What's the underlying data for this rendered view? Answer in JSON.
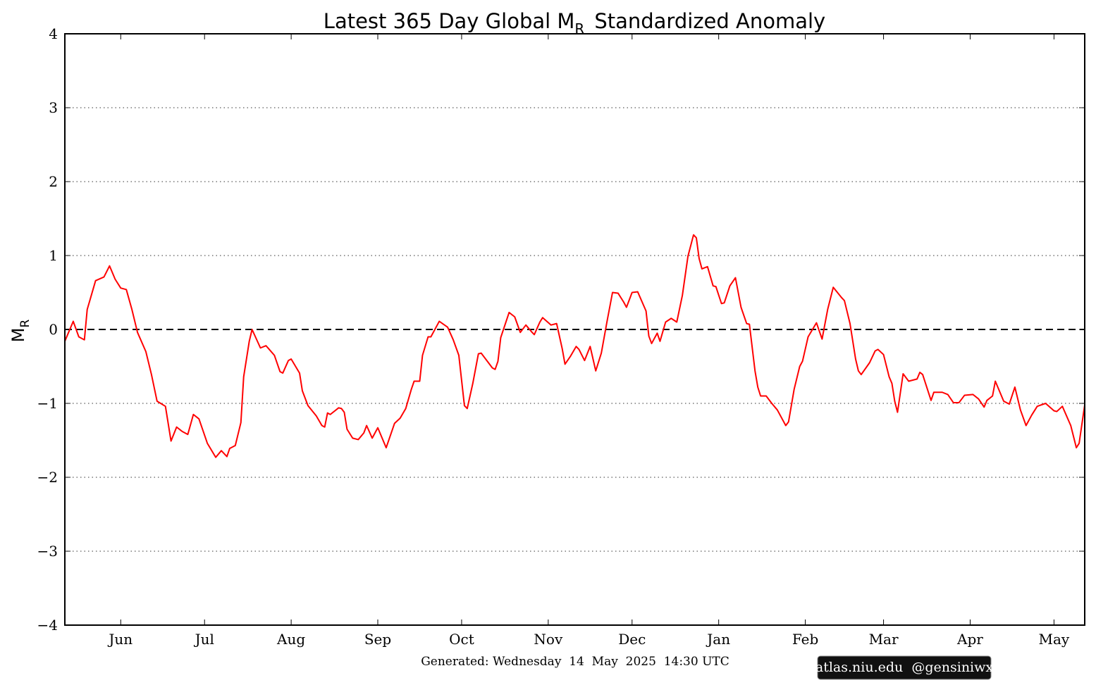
{
  "chart_data": {
    "type": "line",
    "title": "Latest 365 Day Global M",
    "title_sub": "R",
    "title_end": "Standardized Anomaly",
    "ylabel": "M",
    "ylabel_sub": "R",
    "footer": "Generated: Wednesday  14  May  2025  14:30 UTC",
    "credit": "atlas.niu.edu  @gensiniwx",
    "color": "#ff0000",
    "grid": true,
    "zero_line": true,
    "xlim": [
      0,
      365
    ],
    "xticks": [
      {
        "value": 20,
        "label": "Jun"
      },
      {
        "value": 50,
        "label": "Jul"
      },
      {
        "value": 81,
        "label": "Aug"
      },
      {
        "value": 112,
        "label": "Sep"
      },
      {
        "value": 142,
        "label": "Oct"
      },
      {
        "value": 173,
        "label": "Nov"
      },
      {
        "value": 203,
        "label": "Dec"
      },
      {
        "value": 234,
        "label": "Jan"
      },
      {
        "value": 265,
        "label": "Feb"
      },
      {
        "value": 293,
        "label": "Mar"
      },
      {
        "value": 324,
        "label": "Apr"
      },
      {
        "value": 354,
        "label": "May"
      }
    ],
    "ylim": [
      -4,
      4
    ],
    "yticks": [
      {
        "value": -4,
        "label": "−4"
      },
      {
        "value": -3,
        "label": "−3"
      },
      {
        "value": -2,
        "label": "−2"
      },
      {
        "value": -1,
        "label": "−1"
      },
      0,
      1,
      2,
      3,
      4
    ],
    "x": [
      0,
      3,
      5,
      7,
      8,
      11,
      14,
      16,
      18,
      20,
      22,
      24,
      26,
      29,
      31,
      33,
      36,
      38,
      40,
      42,
      44,
      46,
      48,
      51,
      54,
      56,
      58,
      59,
      61,
      63,
      64,
      66,
      67,
      70,
      72,
      75,
      77,
      78,
      80,
      81,
      84,
      85,
      87,
      90,
      92,
      93,
      94,
      95,
      98,
      99,
      100,
      101,
      103,
      105,
      107,
      108,
      110,
      112,
      115,
      118,
      120,
      122,
      124,
      125,
      127,
      128,
      130,
      131,
      134,
      137,
      139,
      141,
      143,
      144,
      146,
      148,
      149,
      151,
      153,
      154,
      155,
      156,
      159,
      161,
      163,
      165,
      167,
      168,
      170,
      171,
      174,
      176,
      178,
      179,
      181,
      183,
      184,
      186,
      188,
      190,
      192,
      194,
      196,
      198,
      200,
      201,
      203,
      205,
      208,
      209,
      210,
      212,
      213,
      215,
      217,
      219,
      221,
      223,
      225,
      226,
      227,
      228,
      230,
      232,
      233,
      235,
      236,
      238,
      240,
      242,
      244,
      245,
      247,
      248,
      249,
      251,
      253,
      255,
      258,
      259,
      261,
      263,
      264,
      266,
      269,
      271,
      273,
      275,
      278,
      279,
      281,
      283,
      284,
      285,
      288,
      290,
      291,
      293,
      295,
      296,
      297,
      298,
      300,
      302,
      305,
      306,
      307,
      310,
      311,
      314,
      316,
      318,
      320,
      322,
      325,
      327,
      329,
      330,
      332,
      333,
      336,
      338,
      340,
      342,
      344,
      346,
      348,
      351,
      354,
      355,
      357,
      360,
      362,
      363,
      365
    ],
    "values": [
      -0.16,
      0.11,
      -0.1,
      -0.14,
      0.27,
      0.66,
      0.71,
      0.86,
      0.68,
      0.56,
      0.54,
      0.27,
      -0.04,
      -0.3,
      -0.61,
      -0.97,
      -1.04,
      -1.51,
      -1.32,
      -1.38,
      -1.42,
      -1.15,
      -1.21,
      -1.54,
      -1.73,
      -1.64,
      -1.72,
      -1.61,
      -1.57,
      -1.26,
      -0.64,
      -0.16,
      0.0,
      -0.25,
      -0.22,
      -0.35,
      -0.57,
      -0.59,
      -0.42,
      -0.4,
      -0.59,
      -0.83,
      -1.03,
      -1.17,
      -1.3,
      -1.32,
      -1.13,
      -1.15,
      -1.06,
      -1.07,
      -1.12,
      -1.35,
      -1.47,
      -1.49,
      -1.4,
      -1.3,
      -1.47,
      -1.33,
      -1.6,
      -1.27,
      -1.2,
      -1.07,
      -0.81,
      -0.7,
      -0.7,
      -0.35,
      -0.1,
      -0.1,
      0.11,
      0.03,
      -0.14,
      -0.35,
      -1.03,
      -1.07,
      -0.73,
      -0.33,
      -0.32,
      -0.42,
      -0.52,
      -0.54,
      -0.43,
      -0.11,
      0.23,
      0.17,
      -0.04,
      0.06,
      -0.03,
      -0.07,
      0.1,
      0.16,
      0.06,
      0.08,
      -0.26,
      -0.47,
      -0.36,
      -0.23,
      -0.27,
      -0.42,
      -0.23,
      -0.56,
      -0.32,
      0.1,
      0.5,
      0.49,
      0.37,
      0.3,
      0.5,
      0.51,
      0.25,
      -0.09,
      -0.19,
      -0.05,
      -0.16,
      0.1,
      0.15,
      0.1,
      0.46,
      0.99,
      1.28,
      1.24,
      0.96,
      0.82,
      0.85,
      0.59,
      0.58,
      0.35,
      0.36,
      0.59,
      0.7,
      0.3,
      0.08,
      0.07,
      -0.56,
      -0.78,
      -0.9,
      -0.9,
      -1.0,
      -1.09,
      -1.3,
      -1.25,
      -0.81,
      -0.5,
      -0.43,
      -0.1,
      0.09,
      -0.13,
      0.27,
      0.57,
      0.43,
      0.39,
      0.08,
      -0.4,
      -0.56,
      -0.61,
      -0.45,
      -0.29,
      -0.27,
      -0.34,
      -0.64,
      -0.73,
      -0.97,
      -1.12,
      -0.6,
      -0.7,
      -0.67,
      -0.58,
      -0.61,
      -0.96,
      -0.85,
      -0.85,
      -0.88,
      -0.99,
      -0.99,
      -0.89,
      -0.88,
      -0.94,
      -1.05,
      -0.96,
      -0.9,
      -0.7,
      -0.97,
      -1.01,
      -0.78,
      -1.09,
      -1.3,
      -1.16,
      -1.04,
      -1.0,
      -1.1,
      -1.11,
      -1.04,
      -1.3,
      -1.6,
      -1.54,
      -1.02
    ]
  }
}
